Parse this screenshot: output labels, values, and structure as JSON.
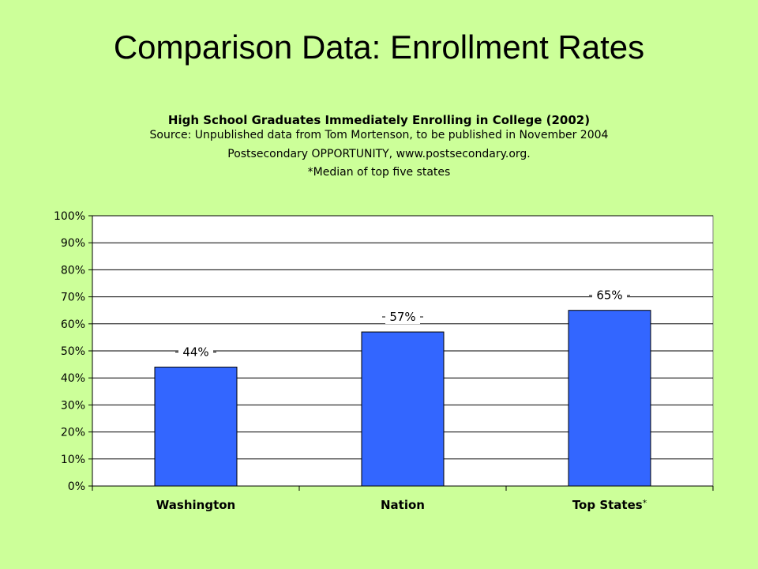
{
  "slide": {
    "title": "Comparison Data: Enrollment Rates"
  },
  "colors": {
    "background": "#ccff99",
    "bar": "#3366ff",
    "plot_area": "#ffffff"
  },
  "chart_data": {
    "type": "bar",
    "title": "High School Graduates Immediately Enrolling in College (2002)",
    "subtitle_lines": [
      "Source: Unpublished data from Tom Mortenson, to be published in November 2004",
      "Postsecondary OPPORTUNITY, www.postsecondary.org.",
      "*Median of top five states"
    ],
    "categories": [
      "Washington",
      "Nation",
      "Top States"
    ],
    "category_suffixes": [
      "",
      "",
      "*"
    ],
    "values": [
      44,
      57,
      65
    ],
    "data_labels": [
      "44%",
      "57%",
      "65%"
    ],
    "ylim": [
      0,
      100
    ],
    "y_ticks": [
      0,
      10,
      20,
      30,
      40,
      50,
      60,
      70,
      80,
      90,
      100
    ],
    "y_tick_labels": [
      "0%",
      "10%",
      "20%",
      "30%",
      "40%",
      "50%",
      "60%",
      "70%",
      "80%",
      "90%",
      "100%"
    ],
    "grid": true,
    "legend": "none"
  }
}
